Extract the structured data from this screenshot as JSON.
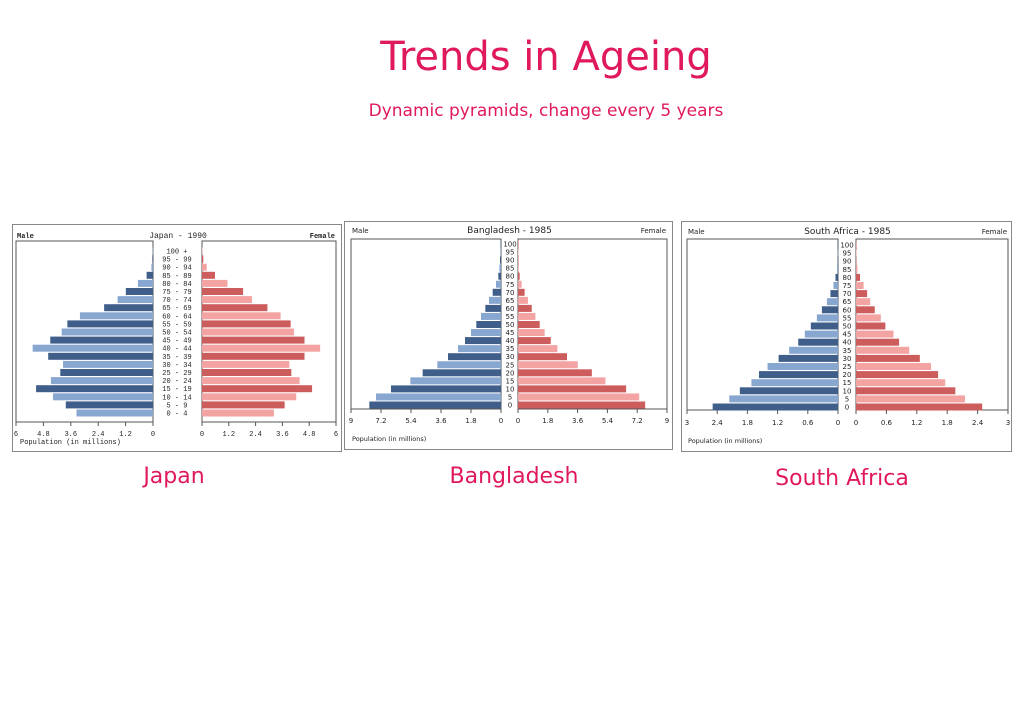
{
  "header": {
    "title": "Trends in Ageing",
    "subtitle": "Dynamic pyramids, change every 5 years"
  },
  "countries": [
    "Japan",
    "Bangladesh",
    "South Africa"
  ],
  "colors": {
    "accent": "#e0185c",
    "male_dark": "#3f5f8a",
    "male_light": "#88a7d0",
    "female_dark": "#cd5c5c",
    "female_light": "#f4a3a3"
  },
  "chart_data": [
    {
      "type": "bar",
      "title": "Japan - 1990",
      "left_label": "Male",
      "right_label": "Female",
      "xlabel": "Population (in millions)",
      "xlim": [
        0,
        6
      ],
      "ticks": [
        "6",
        "4.8",
        "3.6",
        "2.4",
        "1.2",
        "0"
      ],
      "ticks_right": [
        "0",
        "1.2",
        "2.4",
        "3.6",
        "4.8",
        "6"
      ],
      "first_shade": "light",
      "categories": [
        "0 - 4",
        "5 - 9",
        "10 - 14",
        "15 - 19",
        "20 - 24",
        "25 - 29",
        "30 - 34",
        "35 - 39",
        "40 - 44",
        "45 - 49",
        "50 - 54",
        "55 - 59",
        "60 - 64",
        "65 - 69",
        "70 - 74",
        "75 - 79",
        "80 - 84",
        "85 - 89",
        "90 - 94",
        "95 - 99",
        "100 +"
      ],
      "series": [
        {
          "name": "Male",
          "values": [
            3.35,
            3.82,
            4.38,
            5.12,
            4.47,
            4.06,
            3.94,
            4.59,
            5.27,
            4.5,
            4.0,
            3.75,
            3.2,
            2.14,
            1.55,
            1.19,
            0.66,
            0.28,
            0.07,
            0.03,
            0.01
          ]
        },
        {
          "name": "Female",
          "values": [
            3.22,
            3.7,
            4.22,
            4.93,
            4.37,
            4.0,
            3.91,
            4.59,
            5.29,
            4.59,
            4.12,
            3.97,
            3.52,
            2.93,
            2.24,
            1.84,
            1.14,
            0.58,
            0.21,
            0.06,
            0.01
          ]
        }
      ]
    },
    {
      "type": "bar",
      "title": "Bangladesh - 1985",
      "left_label": "Male",
      "right_label": "Female",
      "xlabel": "Population (in millions)",
      "xlim": [
        0,
        9
      ],
      "ticks": [
        "9",
        "7.2",
        "5.4",
        "3.6",
        "1.8",
        "0"
      ],
      "ticks_right": [
        "0",
        "1.8",
        "3.6",
        "5.4",
        "7.2",
        "9"
      ],
      "first_shade": "dark",
      "categories": [
        "0",
        "5",
        "10",
        "15",
        "20",
        "25",
        "30",
        "35",
        "40",
        "45",
        "50",
        "55",
        "60",
        "65",
        "70",
        "75",
        "80",
        "85",
        "90",
        "95",
        "100"
      ],
      "series": [
        {
          "name": "Male",
          "values": [
            7.9,
            7.5,
            6.6,
            5.44,
            4.7,
            3.82,
            3.18,
            2.58,
            2.16,
            1.8,
            1.48,
            1.2,
            0.94,
            0.72,
            0.5,
            0.3,
            0.16,
            0.1,
            0.06,
            0.04,
            0.02
          ]
        },
        {
          "name": "Female",
          "values": [
            7.68,
            7.32,
            6.53,
            5.28,
            4.46,
            3.61,
            2.96,
            2.38,
            1.98,
            1.61,
            1.31,
            1.05,
            0.83,
            0.6,
            0.4,
            0.22,
            0.1,
            0.04,
            0.02,
            0.01,
            0.005
          ]
        }
      ]
    },
    {
      "type": "bar",
      "title": "South Africa - 1985",
      "left_label": "Male",
      "right_label": "Female",
      "xlabel": "Population (in millions)",
      "xlim": [
        0,
        3
      ],
      "ticks": [
        "3",
        "2.4",
        "1.8",
        "1.2",
        "0.6",
        "0"
      ],
      "ticks_right": [
        "0",
        "0.6",
        "1.2",
        "1.8",
        "2.4",
        "3"
      ],
      "first_shade": "dark",
      "categories": [
        "0",
        "5",
        "10",
        "15",
        "20",
        "25",
        "30",
        "35",
        "40",
        "45",
        "50",
        "55",
        "60",
        "65",
        "70",
        "75",
        "80",
        "85",
        "90",
        "95",
        "100"
      ],
      "series": [
        {
          "name": "Male",
          "values": [
            2.49,
            2.16,
            1.95,
            1.72,
            1.57,
            1.4,
            1.18,
            0.97,
            0.79,
            0.66,
            0.54,
            0.42,
            0.32,
            0.22,
            0.15,
            0.09,
            0.05,
            0.02,
            0.01,
            0.005,
            0.003
          ]
        },
        {
          "name": "Female",
          "values": [
            2.49,
            2.15,
            1.96,
            1.76,
            1.62,
            1.48,
            1.26,
            1.05,
            0.85,
            0.74,
            0.58,
            0.49,
            0.37,
            0.28,
            0.22,
            0.15,
            0.08,
            0.03,
            0.01,
            0.01,
            0.005
          ]
        }
      ]
    }
  ]
}
